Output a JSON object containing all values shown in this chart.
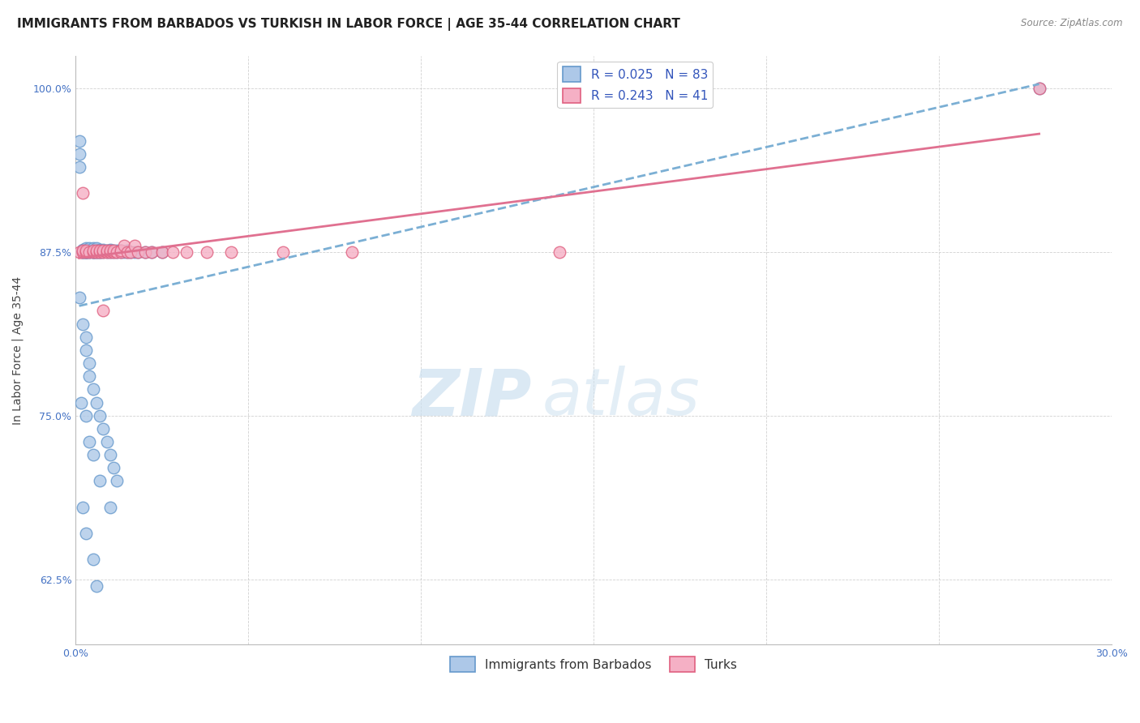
{
  "title": "IMMIGRANTS FROM BARBADOS VS TURKISH IN LABOR FORCE | AGE 35-44 CORRELATION CHART",
  "source": "Source: ZipAtlas.com",
  "ylabel": "In Labor Force | Age 35-44",
  "xlim": [
    0.0,
    0.3
  ],
  "ylim": [
    0.575,
    1.025
  ],
  "xticks": [
    0.0,
    0.05,
    0.1,
    0.15,
    0.2,
    0.25,
    0.3
  ],
  "xticklabels": [
    "0.0%",
    "",
    "",
    "",
    "",
    "",
    "30.0%"
  ],
  "yticks": [
    0.625,
    0.75,
    0.875,
    1.0
  ],
  "yticklabels": [
    "62.5%",
    "75.0%",
    "87.5%",
    "100.0%"
  ],
  "barbados_R": 0.025,
  "barbados_N": 83,
  "turks_R": 0.243,
  "turks_N": 41,
  "barbados_color": "#adc8e8",
  "turks_color": "#f5b0c5",
  "barbados_edge_color": "#6699cc",
  "turks_edge_color": "#e06080",
  "barbados_line_color": "#7bafd4",
  "turks_line_color": "#e07090",
  "legend_R_color": "#3355bb",
  "background_color": "#ffffff",
  "grid_color": "#cccccc",
  "title_fontsize": 11,
  "axis_label_fontsize": 10,
  "tick_fontsize": 9,
  "tick_color": "#4472c4",
  "legend_fontsize": 11,
  "barbados_x": [
    0.001,
    0.001,
    0.001,
    0.002,
    0.002,
    0.002,
    0.002,
    0.002,
    0.003,
    0.003,
    0.003,
    0.003,
    0.003,
    0.003,
    0.003,
    0.004,
    0.004,
    0.004,
    0.004,
    0.004,
    0.005,
    0.005,
    0.005,
    0.005,
    0.005,
    0.005,
    0.006,
    0.006,
    0.006,
    0.006,
    0.006,
    0.007,
    0.007,
    0.007,
    0.007,
    0.008,
    0.008,
    0.008,
    0.009,
    0.009,
    0.01,
    0.01,
    0.01,
    0.011,
    0.011,
    0.012,
    0.012,
    0.013,
    0.013,
    0.014,
    0.015,
    0.015,
    0.016,
    0.017,
    0.018,
    0.02,
    0.022,
    0.025,
    0.001,
    0.002,
    0.003,
    0.003,
    0.004,
    0.004,
    0.005,
    0.006,
    0.007,
    0.008,
    0.009,
    0.01,
    0.011,
    0.012,
    0.002,
    0.003,
    0.005,
    0.006,
    0.0015,
    0.003,
    0.004,
    0.005,
    0.007,
    0.01,
    0.279
  ],
  "barbados_y": [
    0.96,
    0.95,
    0.94,
    0.875,
    0.875,
    0.875,
    0.876,
    0.877,
    0.875,
    0.875,
    0.875,
    0.875,
    0.876,
    0.877,
    0.878,
    0.875,
    0.875,
    0.876,
    0.877,
    0.878,
    0.875,
    0.875,
    0.875,
    0.876,
    0.877,
    0.878,
    0.875,
    0.875,
    0.876,
    0.877,
    0.878,
    0.875,
    0.875,
    0.876,
    0.877,
    0.875,
    0.876,
    0.877,
    0.875,
    0.876,
    0.875,
    0.876,
    0.877,
    0.875,
    0.876,
    0.875,
    0.876,
    0.875,
    0.876,
    0.875,
    0.875,
    0.876,
    0.875,
    0.875,
    0.875,
    0.875,
    0.875,
    0.875,
    0.84,
    0.82,
    0.81,
    0.8,
    0.79,
    0.78,
    0.77,
    0.76,
    0.75,
    0.74,
    0.73,
    0.72,
    0.71,
    0.7,
    0.68,
    0.66,
    0.64,
    0.62,
    0.76,
    0.75,
    0.73,
    0.72,
    0.7,
    0.68,
    1.0
  ],
  "turks_x": [
    0.001,
    0.002,
    0.002,
    0.003,
    0.003,
    0.004,
    0.005,
    0.005,
    0.006,
    0.006,
    0.007,
    0.007,
    0.008,
    0.008,
    0.009,
    0.009,
    0.01,
    0.01,
    0.011,
    0.011,
    0.012,
    0.013,
    0.013,
    0.014,
    0.015,
    0.016,
    0.017,
    0.018,
    0.02,
    0.022,
    0.025,
    0.028,
    0.032,
    0.038,
    0.045,
    0.06,
    0.08,
    0.14,
    0.002,
    0.008,
    0.279
  ],
  "turks_y": [
    0.875,
    0.875,
    0.876,
    0.875,
    0.876,
    0.875,
    0.875,
    0.876,
    0.875,
    0.876,
    0.875,
    0.876,
    0.875,
    0.876,
    0.875,
    0.876,
    0.875,
    0.876,
    0.875,
    0.876,
    0.875,
    0.875,
    0.876,
    0.88,
    0.875,
    0.875,
    0.88,
    0.875,
    0.875,
    0.875,
    0.875,
    0.875,
    0.875,
    0.875,
    0.875,
    0.875,
    0.875,
    0.875,
    0.92,
    0.83,
    1.0
  ]
}
